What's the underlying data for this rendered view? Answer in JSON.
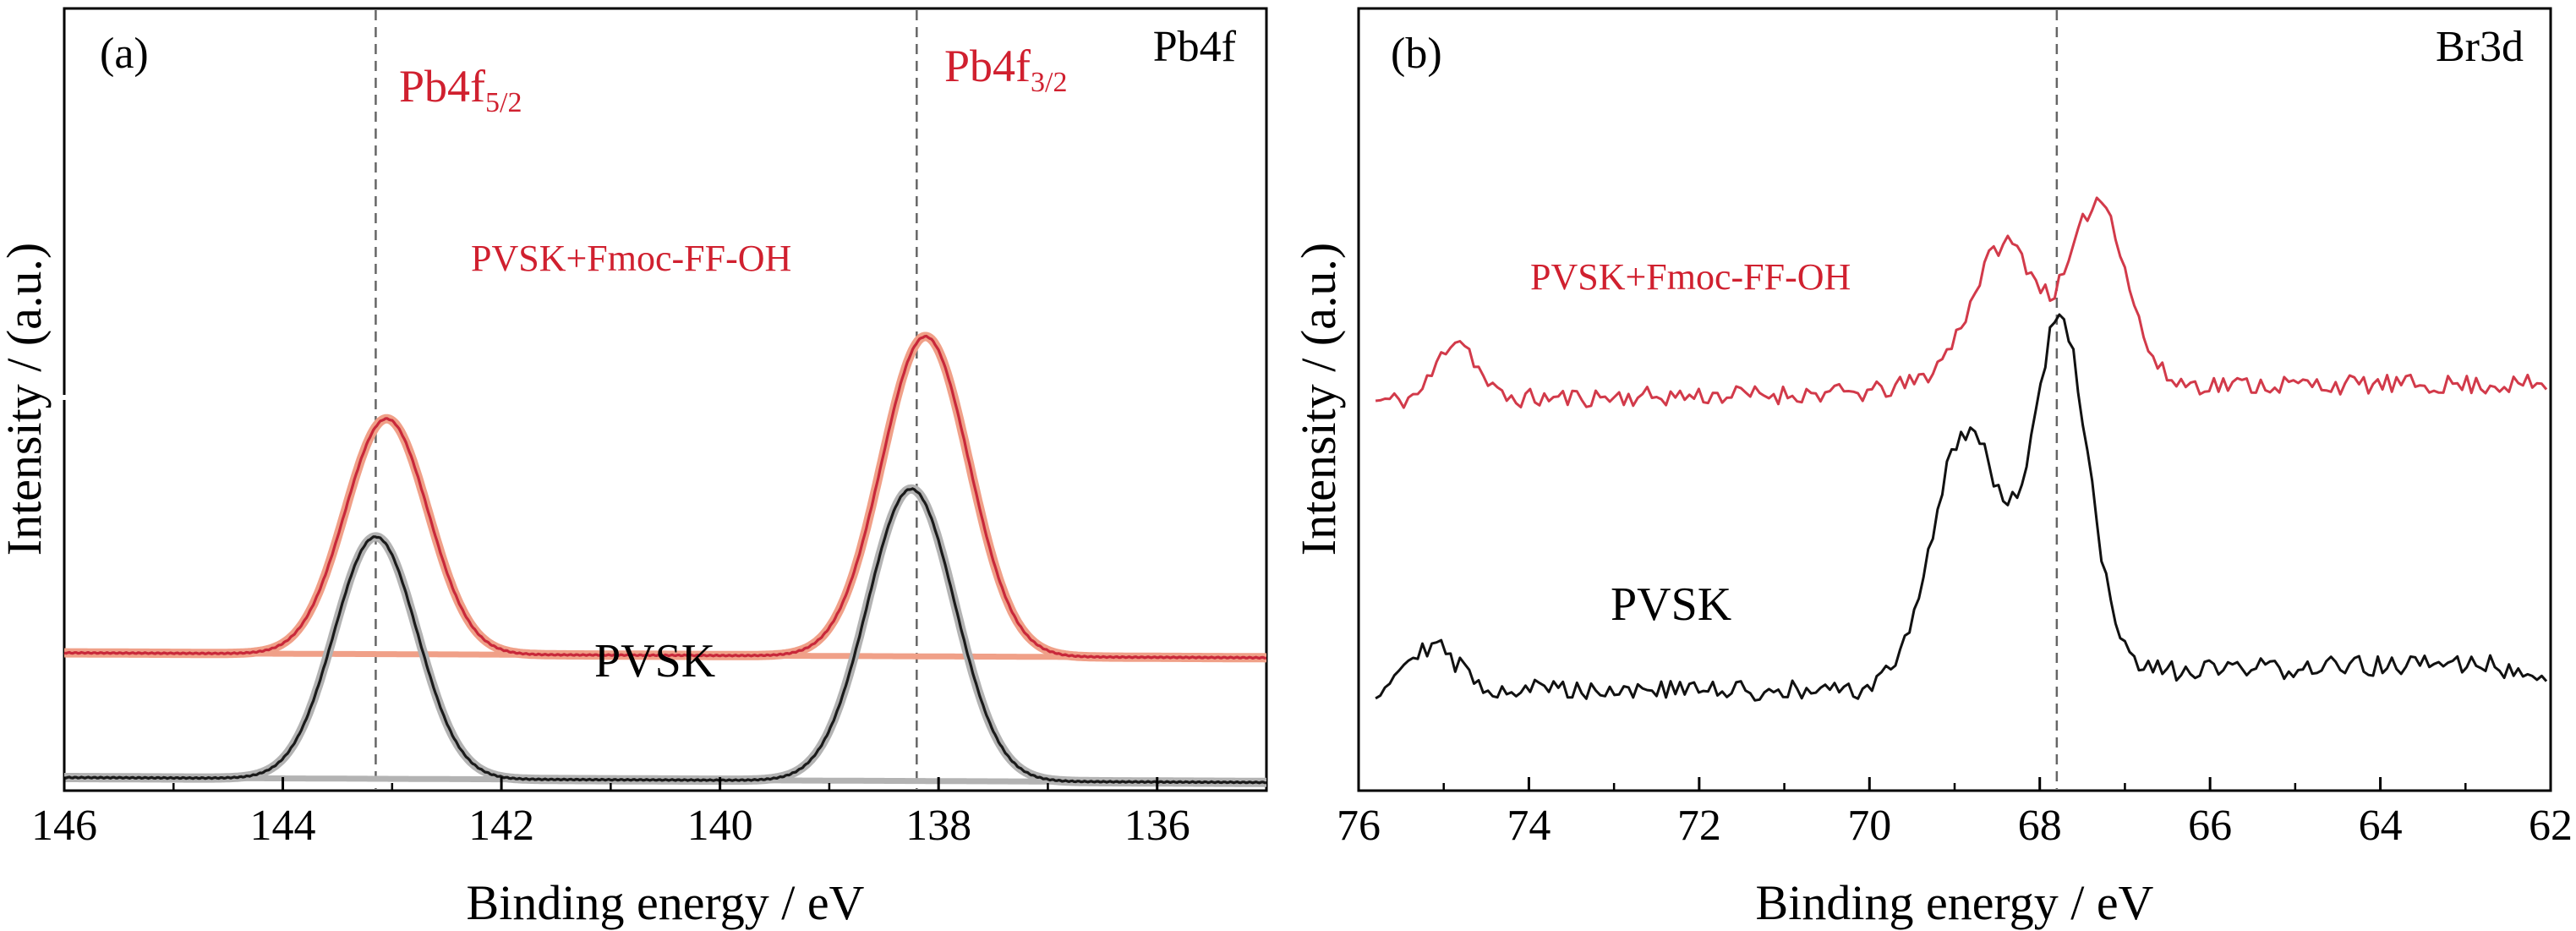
{
  "chart_data": [
    {
      "type": "line",
      "panel_label": "(a)",
      "corner_label": "Pb4f",
      "xlabel": "Binding energy / eV",
      "ylabel": "Intensity / (a.u.)",
      "xlim": [
        146,
        135
      ],
      "x_reversed": true,
      "y_ticks_shown": false,
      "xticks": [
        146,
        144,
        142,
        140,
        138,
        136
      ],
      "reference_lines_x": [
        143.15,
        138.2
      ],
      "peak_labels": [
        {
          "base": "Pb4f",
          "sub": "5/2",
          "x": 143.0
        },
        {
          "base": "Pb4f",
          "sub": "3/2",
          "x": 138.1
        }
      ],
      "series": [
        {
          "name": "PVSK+Fmoc-FF-OH",
          "color": "#c8283a",
          "fit_color": "#f0a088",
          "baseline": [
            0.68,
            0.62
          ],
          "offset": 1.0,
          "peaks": [
            {
              "center": 143.05,
              "height": 2.87,
              "width": 0.38
            },
            {
              "center": 138.12,
              "height": 3.9,
              "width": 0.4
            }
          ]
        },
        {
          "name": "PVSK",
          "color": "#1a1a1a",
          "fit_color": "#b3b3b3",
          "baseline": [
            0.16,
            0.1
          ],
          "offset": 0.0,
          "peaks": [
            {
              "center": 143.15,
              "height": 2.95,
              "width": 0.38
            },
            {
              "center": 138.25,
              "height": 3.56,
              "width": 0.4
            }
          ]
        }
      ]
    },
    {
      "type": "line",
      "panel_label": "(b)",
      "corner_label": "Br3d",
      "xlabel": "Binding energy / eV",
      "ylabel": "Intensity / (a.u.)",
      "xlim": [
        76,
        62
      ],
      "x_reversed": true,
      "y_ticks_shown": false,
      "xticks": [
        76,
        74,
        72,
        70,
        68,
        66,
        64,
        62
      ],
      "reference_lines_x": [
        67.8
      ],
      "series": [
        {
          "name": "PVSK+Fmoc-FF-OH",
          "color": "#d23a4a",
          "noise_seed": 11,
          "noise": 0.12,
          "background": [
            [
              75.8,
              4.75
            ],
            [
              70.0,
              4.85
            ],
            [
              69.0,
              5.05
            ],
            [
              66.5,
              4.95
            ],
            [
              62.0,
              4.95
            ]
          ],
          "peaks": [
            {
              "center": 74.85,
              "height": 0.75,
              "width": 0.22
            },
            {
              "center": 68.4,
              "height": 1.65,
              "width": 0.38
            },
            {
              "center": 67.3,
              "height": 2.2,
              "width": 0.32
            }
          ]
        },
        {
          "name": "PVSK",
          "color": "#111111",
          "noise_seed": 29,
          "noise": 0.13,
          "background": [
            [
              75.8,
              1.05
            ],
            [
              74.0,
              1.25
            ],
            [
              70.0,
              1.2
            ],
            [
              69.0,
              1.45
            ],
            [
              66.5,
              1.45
            ],
            [
              63.0,
              1.55
            ],
            [
              62.0,
              1.45
            ]
          ],
          "peaks": [
            {
              "center": 75.2,
              "height": 0.65,
              "width": 0.35
            },
            {
              "center": 68.85,
              "height": 2.95,
              "width": 0.4
            },
            {
              "center": 67.75,
              "height": 4.25,
              "width": 0.32
            }
          ]
        }
      ]
    }
  ]
}
